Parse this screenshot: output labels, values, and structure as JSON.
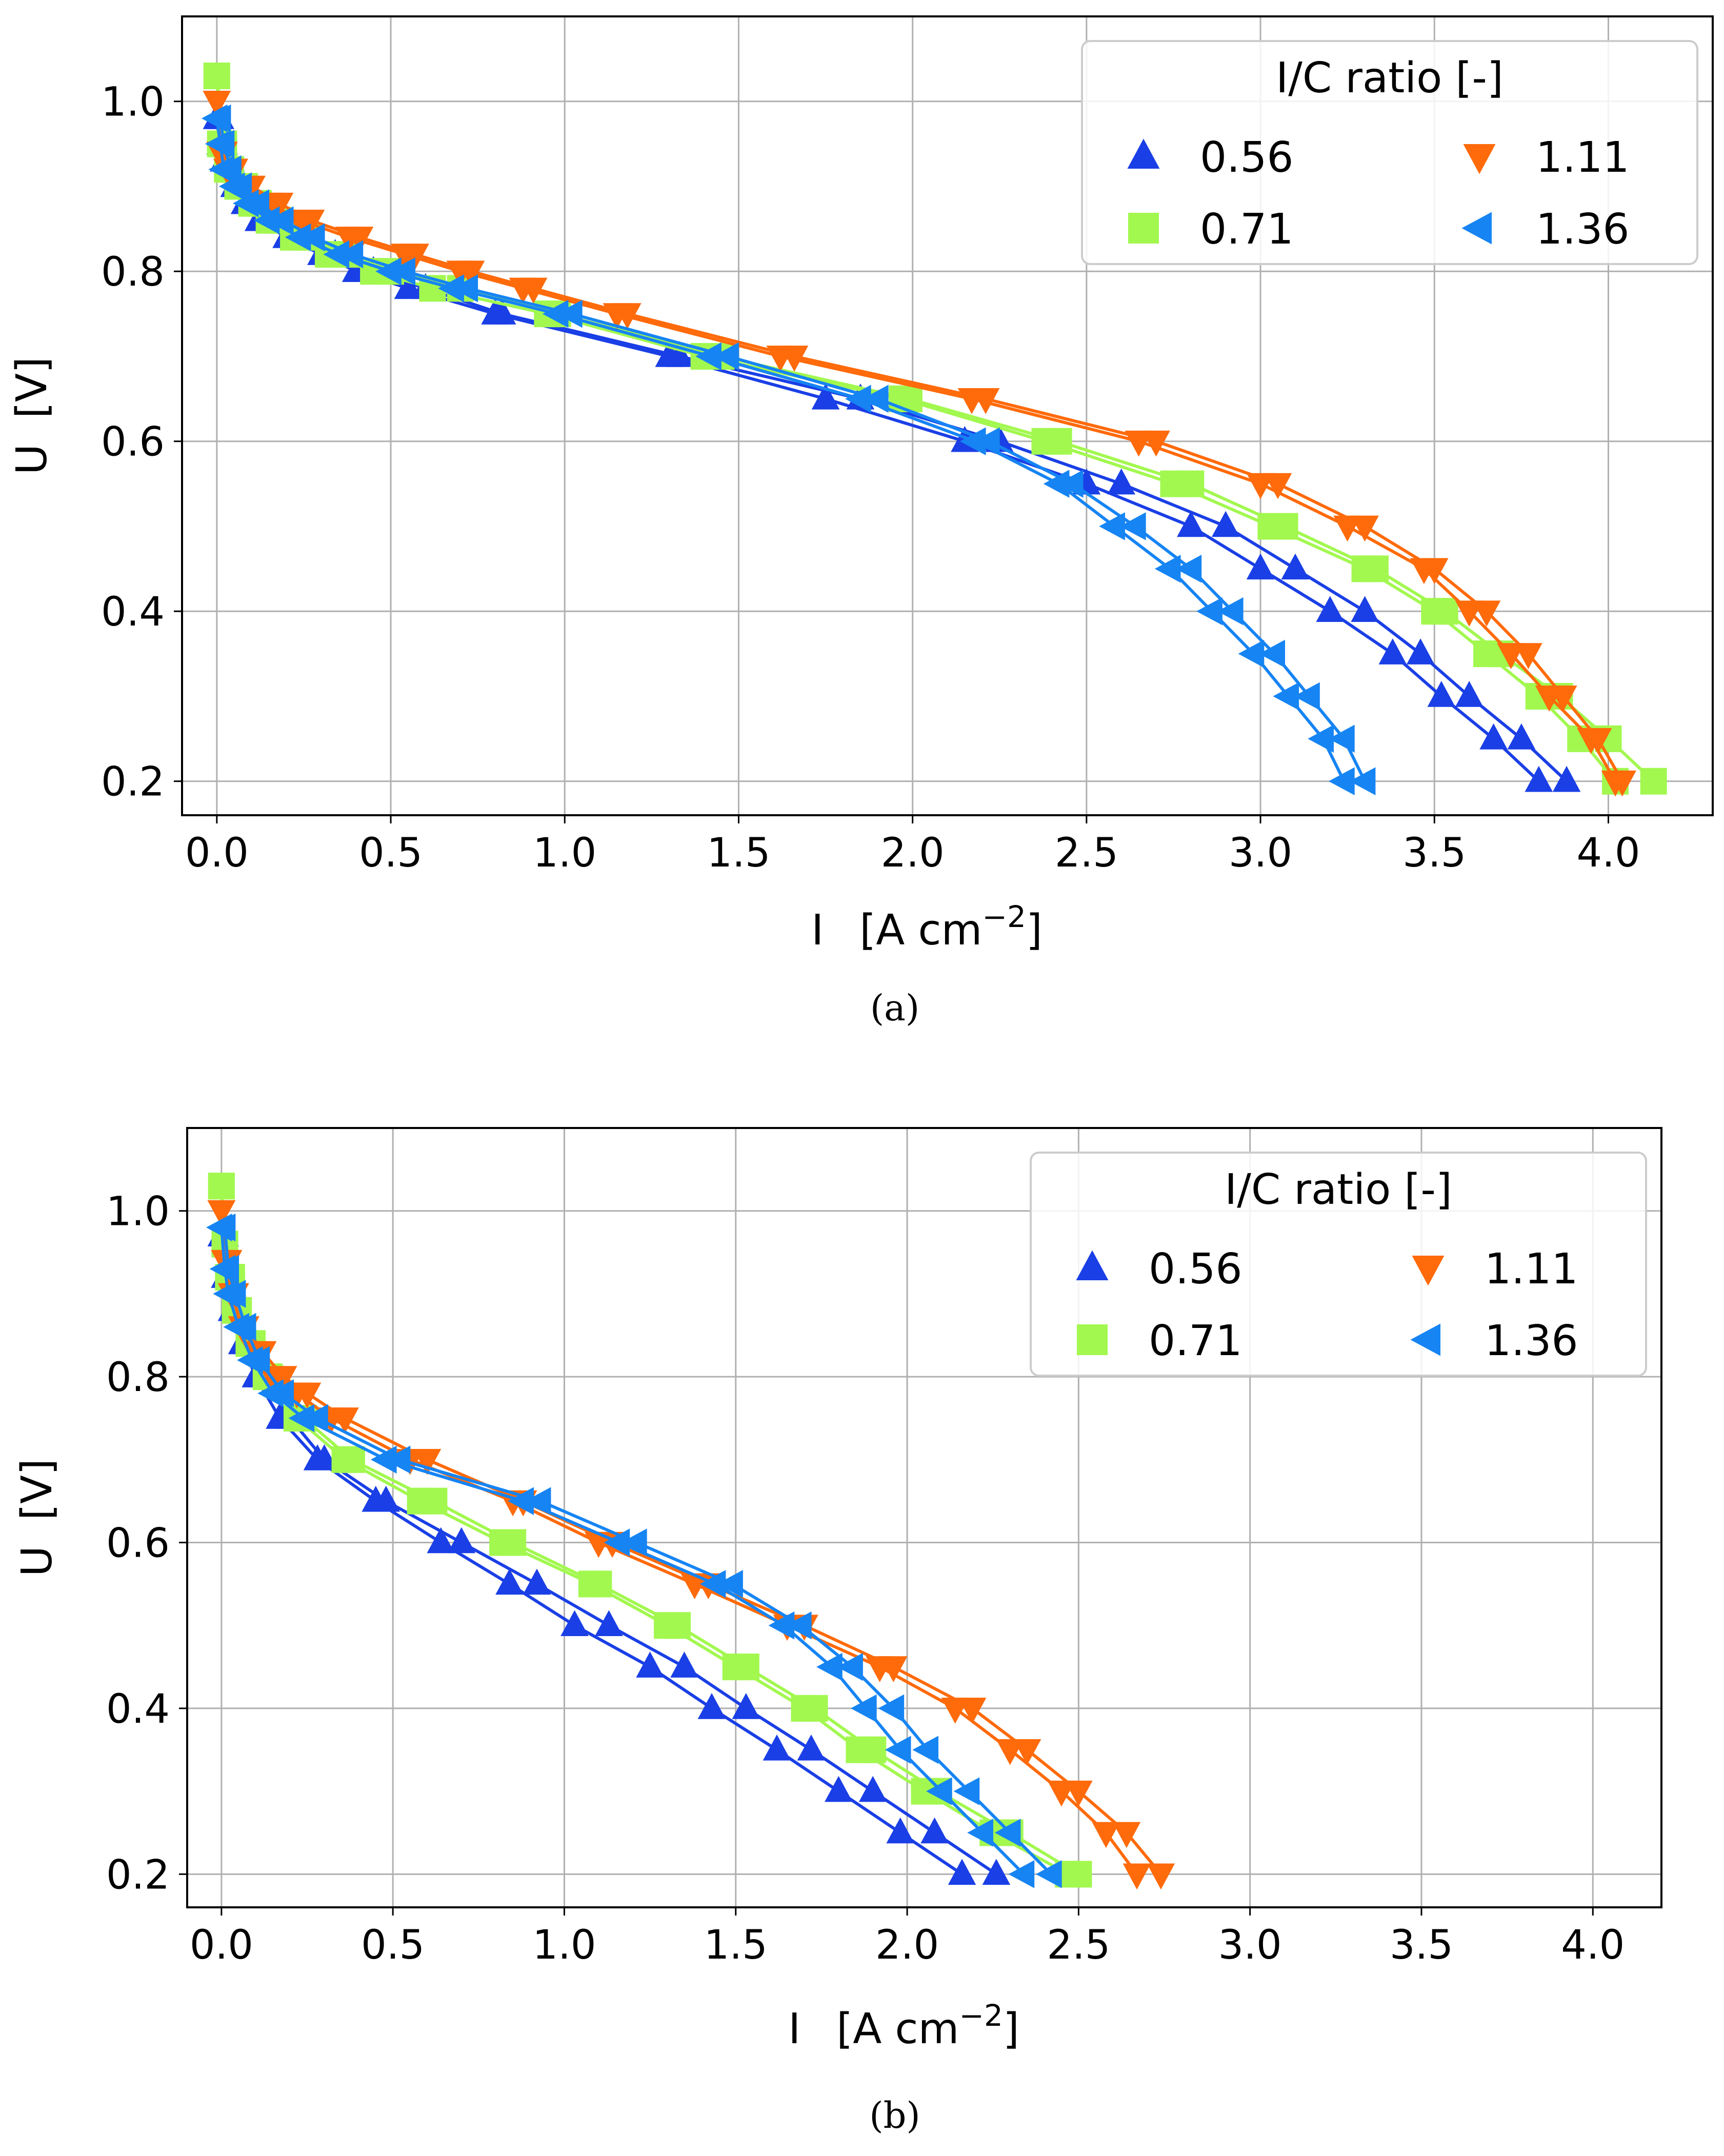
{
  "chart_data": [
    {
      "type": "line",
      "caption": "(a)",
      "xlabel": "I",
      "xunit_prefix": "[A cm",
      "xunit_exp": "−2",
      "xunit_suffix": "]",
      "ylabel": "U",
      "yunit": "[V]",
      "xlim": [
        -0.1,
        4.3
      ],
      "ylim": [
        0.16,
        1.1
      ],
      "xticks": [
        "0.0",
        "0.5",
        "1.0",
        "1.5",
        "2.0",
        "2.5",
        "3.0",
        "3.5",
        "4.0"
      ],
      "yticks": [
        "0.2",
        "0.4",
        "0.6",
        "0.8",
        "1.0"
      ],
      "grid": true,
      "legend": {
        "title": "I/C ratio [-]",
        "position": "top-right",
        "entries": [
          "0.56",
          "1.11",
          "0.71",
          "1.36"
        ]
      },
      "series": [
        {
          "name": "0.56",
          "color": "#1a3fe6",
          "marker": "triangle-up",
          "u": [
            0.98,
            0.95,
            0.93,
            0.9,
            0.88,
            0.86,
            0.84,
            0.82,
            0.8,
            0.78,
            0.75,
            0.7,
            0.65,
            0.6,
            0.55,
            0.5,
            0.45,
            0.4,
            0.35,
            0.3,
            0.25,
            0.2
          ],
          "i_a": [
            0.0,
            0.01,
            0.02,
            0.05,
            0.08,
            0.12,
            0.2,
            0.3,
            0.4,
            0.55,
            0.8,
            1.3,
            1.75,
            2.15,
            2.5,
            2.8,
            3.0,
            3.2,
            3.38,
            3.52,
            3.67,
            3.8
          ],
          "i_b": [
            0.01,
            0.02,
            0.04,
            0.07,
            0.1,
            0.15,
            0.24,
            0.34,
            0.45,
            0.6,
            0.82,
            1.33,
            1.85,
            2.25,
            2.6,
            2.9,
            3.1,
            3.3,
            3.46,
            3.6,
            3.75,
            3.88
          ]
        },
        {
          "name": "0.71",
          "color": "#a2f84f",
          "marker": "square",
          "u": [
            1.03,
            0.95,
            0.92,
            0.9,
            0.88,
            0.86,
            0.84,
            0.82,
            0.8,
            0.78,
            0.75,
            0.7,
            0.65,
            0.6,
            0.55,
            0.5,
            0.45,
            0.4,
            0.35,
            0.3,
            0.25,
            0.2
          ],
          "i_a": [
            0.0,
            0.01,
            0.03,
            0.06,
            0.1,
            0.15,
            0.22,
            0.32,
            0.45,
            0.62,
            0.95,
            1.4,
            1.97,
            2.38,
            2.75,
            3.03,
            3.3,
            3.5,
            3.65,
            3.8,
            3.92,
            4.02
          ],
          "i_b": [
            0.0,
            0.02,
            0.04,
            0.08,
            0.12,
            0.18,
            0.26,
            0.37,
            0.5,
            0.7,
            0.98,
            1.45,
            1.99,
            2.42,
            2.8,
            3.07,
            3.33,
            3.53,
            3.69,
            3.86,
            4.0,
            4.13
          ]
        },
        {
          "name": "1.11",
          "color": "#ff6a0a",
          "marker": "triangle-down",
          "u": [
            1.0,
            0.94,
            0.92,
            0.9,
            0.88,
            0.86,
            0.84,
            0.82,
            0.8,
            0.78,
            0.75,
            0.7,
            0.65,
            0.6,
            0.55,
            0.5,
            0.45,
            0.4,
            0.35,
            0.3,
            0.25,
            0.2
          ],
          "i_a": [
            0.0,
            0.01,
            0.03,
            0.08,
            0.15,
            0.24,
            0.38,
            0.54,
            0.7,
            0.88,
            1.15,
            1.62,
            2.17,
            2.65,
            3.0,
            3.25,
            3.47,
            3.6,
            3.72,
            3.83,
            3.95,
            4.02
          ],
          "i_b": [
            0.0,
            0.02,
            0.05,
            0.1,
            0.18,
            0.27,
            0.41,
            0.57,
            0.73,
            0.91,
            1.18,
            1.66,
            2.21,
            2.7,
            3.05,
            3.3,
            3.5,
            3.65,
            3.77,
            3.87,
            3.97,
            4.04
          ]
        },
        {
          "name": "1.36",
          "color": "#1684f3",
          "marker": "triangle-left",
          "u": [
            0.98,
            0.95,
            0.92,
            0.9,
            0.88,
            0.86,
            0.84,
            0.82,
            0.8,
            0.78,
            0.75,
            0.7,
            0.65,
            0.6,
            0.55,
            0.5,
            0.45,
            0.4,
            0.35,
            0.3,
            0.25,
            0.2
          ],
          "i_a": [
            0.0,
            0.01,
            0.02,
            0.05,
            0.09,
            0.15,
            0.24,
            0.35,
            0.5,
            0.68,
            0.98,
            1.42,
            1.85,
            2.18,
            2.42,
            2.58,
            2.74,
            2.86,
            2.98,
            3.08,
            3.18,
            3.24
          ],
          "i_b": [
            0.01,
            0.02,
            0.04,
            0.07,
            0.12,
            0.19,
            0.28,
            0.39,
            0.54,
            0.72,
            1.02,
            1.47,
            1.9,
            2.22,
            2.46,
            2.64,
            2.8,
            2.92,
            3.04,
            3.14,
            3.24,
            3.3
          ]
        }
      ]
    },
    {
      "type": "line",
      "caption": "(b)",
      "xlabel": "I",
      "xunit_prefix": "[A cm",
      "xunit_exp": "−2",
      "xunit_suffix": "]",
      "ylabel": "U",
      "yunit": "[V]",
      "xlim": [
        -0.1,
        4.2
      ],
      "ylim": [
        0.16,
        1.1
      ],
      "xticks": [
        "0.0",
        "0.5",
        "1.0",
        "1.5",
        "2.0",
        "2.5",
        "3.0",
        "3.5",
        "4.0"
      ],
      "yticks": [
        "0.2",
        "0.4",
        "0.6",
        "0.8",
        "1.0"
      ],
      "grid": true,
      "legend": {
        "title": "I/C ratio [-]",
        "position": "top-right",
        "entries": [
          "0.56",
          "1.11",
          "0.71",
          "1.36"
        ]
      },
      "series": [
        {
          "name": "0.56",
          "color": "#1a3fe6",
          "marker": "triangle-up",
          "u": [
            0.97,
            0.92,
            0.88,
            0.84,
            0.8,
            0.75,
            0.7,
            0.65,
            0.6,
            0.55,
            0.5,
            0.45,
            0.4,
            0.35,
            0.3,
            0.25,
            0.2
          ],
          "i_a": [
            0.0,
            0.01,
            0.03,
            0.06,
            0.1,
            0.17,
            0.28,
            0.45,
            0.64,
            0.84,
            1.03,
            1.25,
            1.43,
            1.62,
            1.8,
            1.98,
            2.16
          ],
          "i_b": [
            0.01,
            0.02,
            0.04,
            0.08,
            0.12,
            0.2,
            0.3,
            0.48,
            0.7,
            0.92,
            1.13,
            1.35,
            1.53,
            1.72,
            1.9,
            2.08,
            2.26
          ]
        },
        {
          "name": "0.71",
          "color": "#a2f84f",
          "marker": "square",
          "u": [
            1.03,
            0.96,
            0.92,
            0.88,
            0.84,
            0.8,
            0.75,
            0.7,
            0.65,
            0.6,
            0.55,
            0.5,
            0.45,
            0.4,
            0.35,
            0.3,
            0.25,
            0.2
          ],
          "i_a": [
            0.0,
            0.01,
            0.02,
            0.04,
            0.08,
            0.13,
            0.22,
            0.36,
            0.58,
            0.82,
            1.08,
            1.3,
            1.5,
            1.7,
            1.86,
            2.05,
            2.25,
            2.47
          ],
          "i_b": [
            0.0,
            0.01,
            0.03,
            0.05,
            0.09,
            0.14,
            0.24,
            0.38,
            0.62,
            0.85,
            1.1,
            1.33,
            1.53,
            1.73,
            1.9,
            2.09,
            2.3,
            2.5
          ]
        },
        {
          "name": "1.11",
          "color": "#ff6a0a",
          "marker": "triangle-down",
          "u": [
            1.0,
            0.94,
            0.9,
            0.86,
            0.83,
            0.8,
            0.78,
            0.75,
            0.7,
            0.65,
            0.6,
            0.55,
            0.5,
            0.45,
            0.4,
            0.35,
            0.3,
            0.25,
            0.2
          ],
          "i_a": [
            0.0,
            0.01,
            0.03,
            0.06,
            0.1,
            0.15,
            0.22,
            0.32,
            0.55,
            0.85,
            1.1,
            1.38,
            1.65,
            1.92,
            2.14,
            2.3,
            2.45,
            2.58,
            2.67
          ],
          "i_b": [
            0.0,
            0.02,
            0.04,
            0.07,
            0.12,
            0.18,
            0.25,
            0.36,
            0.6,
            0.88,
            1.14,
            1.42,
            1.7,
            1.96,
            2.19,
            2.35,
            2.5,
            2.64,
            2.74
          ]
        },
        {
          "name": "1.36",
          "color": "#1684f3",
          "marker": "triangle-left",
          "u": [
            0.98,
            0.93,
            0.9,
            0.86,
            0.82,
            0.78,
            0.75,
            0.7,
            0.65,
            0.6,
            0.55,
            0.5,
            0.45,
            0.4,
            0.35,
            0.3,
            0.25,
            0.2
          ],
          "i_a": [
            0.0,
            0.01,
            0.02,
            0.05,
            0.09,
            0.15,
            0.24,
            0.48,
            0.88,
            1.16,
            1.44,
            1.64,
            1.78,
            1.88,
            1.98,
            2.1,
            2.22,
            2.34
          ],
          "i_b": [
            0.01,
            0.02,
            0.04,
            0.07,
            0.11,
            0.18,
            0.28,
            0.52,
            0.93,
            1.21,
            1.49,
            1.69,
            1.84,
            1.96,
            2.06,
            2.18,
            2.3,
            2.42
          ]
        }
      ]
    }
  ]
}
